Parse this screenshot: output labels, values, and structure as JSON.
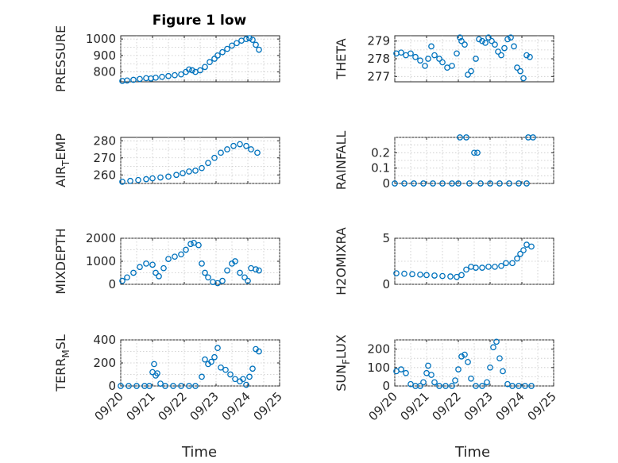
{
  "figure_title": "Figure 1 low",
  "marker_color": "#0072bd",
  "x_tick_labels": [
    "09/20",
    "09/21",
    "09/22",
    "09/23",
    "09/24",
    "09/25"
  ],
  "x_label": "Time",
  "chart_data": [
    {
      "type": "scatter",
      "title": "Figure 1 low",
      "ylabel": "PRESSURE",
      "xlim": [
        0,
        5
      ],
      "ylim": [
        740,
        1020
      ],
      "y_ticks": [
        800,
        900,
        1000
      ],
      "y_tick_labels": [
        "800",
        "900",
        "1000"
      ],
      "grid": true,
      "series": [
        {
          "points": [
            [
              0.05,
              745
            ],
            [
              0.2,
              748
            ],
            [
              0.4,
              752
            ],
            [
              0.6,
              757
            ],
            [
              0.8,
              762
            ],
            [
              0.95,
              760
            ],
            [
              1.1,
              765
            ],
            [
              1.3,
              770
            ],
            [
              1.5,
              775
            ],
            [
              1.7,
              780
            ],
            [
              1.9,
              785
            ],
            [
              2.05,
              800
            ],
            [
              2.15,
              815
            ],
            [
              2.25,
              810
            ],
            [
              2.35,
              800
            ],
            [
              2.5,
              810
            ],
            [
              2.65,
              830
            ],
            [
              2.8,
              860
            ],
            [
              2.95,
              880
            ],
            [
              3.05,
              900
            ],
            [
              3.2,
              920
            ],
            [
              3.35,
              940
            ],
            [
              3.5,
              960
            ],
            [
              3.65,
              975
            ],
            [
              3.8,
              990
            ],
            [
              3.95,
              1000
            ],
            [
              4.05,
              1005
            ],
            [
              4.15,
              995
            ],
            [
              4.25,
              965
            ],
            [
              4.35,
              935
            ]
          ]
        }
      ]
    },
    {
      "type": "scatter",
      "ylabel": "THETA",
      "xlim": [
        0,
        5
      ],
      "ylim": [
        276.7,
        279.3
      ],
      "y_ticks": [
        277,
        278,
        279
      ],
      "y_tick_labels": [
        "277",
        "278",
        "279"
      ],
      "grid": true,
      "series": [
        {
          "points": [
            [
              0.05,
              278.3
            ],
            [
              0.2,
              278.35
            ],
            [
              0.35,
              278.2
            ],
            [
              0.5,
              278.3
            ],
            [
              0.65,
              278.1
            ],
            [
              0.8,
              277.9
            ],
            [
              0.95,
              277.6
            ],
            [
              1.05,
              278.0
            ],
            [
              1.15,
              278.7
            ],
            [
              1.25,
              278.2
            ],
            [
              1.4,
              278.0
            ],
            [
              1.5,
              277.8
            ],
            [
              1.65,
              277.5
            ],
            [
              1.8,
              277.6
            ],
            [
              1.95,
              278.3
            ],
            [
              2.05,
              279.2
            ],
            [
              2.1,
              279.0
            ],
            [
              2.2,
              278.8
            ],
            [
              2.3,
              277.1
            ],
            [
              2.4,
              277.3
            ],
            [
              2.55,
              278.0
            ],
            [
              2.65,
              279.1
            ],
            [
              2.75,
              279.0
            ],
            [
              2.85,
              278.9
            ],
            [
              2.95,
              279.2
            ],
            [
              3.05,
              279.0
            ],
            [
              3.15,
              278.8
            ],
            [
              3.25,
              278.4
            ],
            [
              3.35,
              278.2
            ],
            [
              3.45,
              278.6
            ],
            [
              3.55,
              279.1
            ],
            [
              3.65,
              279.2
            ],
            [
              3.75,
              278.7
            ],
            [
              3.85,
              277.5
            ],
            [
              3.95,
              277.3
            ],
            [
              4.05,
              276.9
            ],
            [
              4.15,
              278.2
            ],
            [
              4.25,
              278.1
            ]
          ]
        }
      ]
    },
    {
      "type": "scatter",
      "ylabel": "AIR_TEMP",
      "xlim": [
        0,
        5
      ],
      "ylim": [
        255,
        282
      ],
      "y_ticks": [
        260,
        270,
        280
      ],
      "y_tick_labels": [
        "260",
        "270",
        "280"
      ],
      "grid": true,
      "series": [
        {
          "points": [
            [
              0.05,
              256
            ],
            [
              0.3,
              256.5
            ],
            [
              0.55,
              257
            ],
            [
              0.8,
              257.5
            ],
            [
              1.0,
              258
            ],
            [
              1.25,
              258.5
            ],
            [
              1.5,
              259
            ],
            [
              1.75,
              260
            ],
            [
              1.95,
              261
            ],
            [
              2.15,
              262
            ],
            [
              2.35,
              262.5
            ],
            [
              2.55,
              264
            ],
            [
              2.75,
              267
            ],
            [
              2.95,
              270
            ],
            [
              3.15,
              273
            ],
            [
              3.35,
              275
            ],
            [
              3.55,
              277
            ],
            [
              3.75,
              278
            ],
            [
              3.95,
              277
            ],
            [
              4.1,
              275
            ],
            [
              4.3,
              273
            ]
          ]
        }
      ]
    },
    {
      "type": "scatter",
      "ylabel": "RAINFALL",
      "xlim": [
        0,
        5
      ],
      "ylim": [
        0,
        0.3
      ],
      "y_ticks": [
        0,
        0.1,
        0.2
      ],
      "y_tick_labels": [
        "0",
        "0.1",
        "0.2"
      ],
      "grid": true,
      "series": [
        {
          "points": [
            [
              0.0,
              0
            ],
            [
              0.3,
              0
            ],
            [
              0.6,
              0
            ],
            [
              0.9,
              0
            ],
            [
              1.2,
              0
            ],
            [
              1.5,
              0
            ],
            [
              1.8,
              0
            ],
            [
              2.0,
              0
            ],
            [
              2.05,
              0.3
            ],
            [
              2.25,
              0.3
            ],
            [
              2.35,
              0
            ],
            [
              2.5,
              0.2
            ],
            [
              2.6,
              0.2
            ],
            [
              2.7,
              0
            ],
            [
              3.0,
              0
            ],
            [
              3.3,
              0
            ],
            [
              3.6,
              0
            ],
            [
              3.9,
              0
            ],
            [
              4.15,
              0
            ],
            [
              4.2,
              0.3
            ],
            [
              4.35,
              0.3
            ]
          ]
        }
      ]
    },
    {
      "type": "scatter",
      "ylabel": "MIXDEPTH",
      "xlim": [
        0,
        5
      ],
      "ylim": [
        0,
        2000
      ],
      "y_ticks": [
        0,
        1000,
        2000
      ],
      "y_tick_labels": [
        "0",
        "1000",
        "2000"
      ],
      "grid": true,
      "series": [
        {
          "points": [
            [
              0.05,
              150
            ],
            [
              0.2,
              300
            ],
            [
              0.4,
              500
            ],
            [
              0.6,
              750
            ],
            [
              0.8,
              900
            ],
            [
              1.0,
              850
            ],
            [
              1.1,
              500
            ],
            [
              1.2,
              350
            ],
            [
              1.35,
              700
            ],
            [
              1.5,
              1100
            ],
            [
              1.7,
              1200
            ],
            [
              1.9,
              1300
            ],
            [
              2.05,
              1500
            ],
            [
              2.2,
              1750
            ],
            [
              2.3,
              1800
            ],
            [
              2.45,
              1700
            ],
            [
              2.55,
              900
            ],
            [
              2.65,
              500
            ],
            [
              2.75,
              300
            ],
            [
              2.9,
              100
            ],
            [
              3.05,
              50
            ],
            [
              3.2,
              150
            ],
            [
              3.35,
              600
            ],
            [
              3.5,
              900
            ],
            [
              3.6,
              1000
            ],
            [
              3.75,
              500
            ],
            [
              3.9,
              300
            ],
            [
              4.0,
              150
            ],
            [
              4.1,
              700
            ],
            [
              4.25,
              650
            ],
            [
              4.35,
              600
            ]
          ]
        }
      ]
    },
    {
      "type": "scatter",
      "ylabel": "H2OMIXRA",
      "xlim": [
        0,
        5
      ],
      "ylim": [
        0,
        5
      ],
      "y_ticks": [
        0,
        5
      ],
      "y_tick_labels": [
        "0",
        "5"
      ],
      "grid": true,
      "series": [
        {
          "points": [
            [
              0.05,
              1.2
            ],
            [
              0.3,
              1.15
            ],
            [
              0.55,
              1.1
            ],
            [
              0.8,
              1.05
            ],
            [
              1.0,
              1.0
            ],
            [
              1.25,
              0.95
            ],
            [
              1.5,
              0.9
            ],
            [
              1.75,
              0.85
            ],
            [
              1.95,
              0.8
            ],
            [
              2.1,
              1.0
            ],
            [
              2.25,
              1.6
            ],
            [
              2.4,
              1.9
            ],
            [
              2.55,
              1.8
            ],
            [
              2.75,
              1.8
            ],
            [
              2.95,
              1.9
            ],
            [
              3.15,
              1.9
            ],
            [
              3.35,
              2.0
            ],
            [
              3.5,
              2.3
            ],
            [
              3.7,
              2.3
            ],
            [
              3.85,
              2.8
            ],
            [
              3.95,
              3.3
            ],
            [
              4.05,
              3.7
            ],
            [
              4.15,
              4.3
            ],
            [
              4.3,
              4.1
            ]
          ]
        }
      ]
    },
    {
      "type": "scatter",
      "ylabel": "TERR_MSL",
      "xlim": [
        0,
        5
      ],
      "ylim": [
        0,
        400
      ],
      "y_ticks": [
        0,
        200,
        400
      ],
      "y_tick_labels": [
        "0",
        "200",
        "400"
      ],
      "grid": true,
      "series": [
        {
          "points": [
            [
              0.0,
              0
            ],
            [
              0.25,
              0
            ],
            [
              0.5,
              0
            ],
            [
              0.75,
              0
            ],
            [
              0.9,
              0
            ],
            [
              1.0,
              120
            ],
            [
              1.05,
              190
            ],
            [
              1.1,
              90
            ],
            [
              1.15,
              110
            ],
            [
              1.25,
              20
            ],
            [
              1.4,
              0
            ],
            [
              1.65,
              0
            ],
            [
              1.9,
              0
            ],
            [
              2.15,
              0
            ],
            [
              2.35,
              0
            ],
            [
              2.55,
              80
            ],
            [
              2.65,
              230
            ],
            [
              2.75,
              190
            ],
            [
              2.85,
              210
            ],
            [
              2.95,
              250
            ],
            [
              3.05,
              330
            ],
            [
              3.15,
              160
            ],
            [
              3.3,
              140
            ],
            [
              3.45,
              100
            ],
            [
              3.6,
              60
            ],
            [
              3.75,
              40
            ],
            [
              3.85,
              60
            ],
            [
              3.95,
              10
            ],
            [
              4.05,
              80
            ],
            [
              4.15,
              150
            ],
            [
              4.25,
              320
            ],
            [
              4.35,
              300
            ]
          ]
        }
      ]
    },
    {
      "type": "scatter",
      "ylabel": "SUN_FLUX",
      "xlim": [
        0,
        5
      ],
      "ylim": [
        0,
        250
      ],
      "y_ticks": [
        0,
        100,
        200
      ],
      "y_tick_labels": [
        "0",
        "100",
        "200"
      ],
      "grid": true,
      "series": [
        {
          "points": [
            [
              0.05,
              80
            ],
            [
              0.2,
              90
            ],
            [
              0.35,
              70
            ],
            [
              0.5,
              10
            ],
            [
              0.65,
              0
            ],
            [
              0.8,
              0
            ],
            [
              0.9,
              20
            ],
            [
              1.0,
              70
            ],
            [
              1.05,
              110
            ],
            [
              1.15,
              60
            ],
            [
              1.25,
              20
            ],
            [
              1.4,
              0
            ],
            [
              1.6,
              0
            ],
            [
              1.8,
              0
            ],
            [
              1.9,
              30
            ],
            [
              2.0,
              90
            ],
            [
              2.1,
              160
            ],
            [
              2.2,
              170
            ],
            [
              2.3,
              130
            ],
            [
              2.4,
              40
            ],
            [
              2.55,
              0
            ],
            [
              2.75,
              0
            ],
            [
              2.9,
              20
            ],
            [
              3.0,
              100
            ],
            [
              3.1,
              210
            ],
            [
              3.2,
              240
            ],
            [
              3.3,
              150
            ],
            [
              3.4,
              80
            ],
            [
              3.55,
              10
            ],
            [
              3.7,
              0
            ],
            [
              3.9,
              0
            ],
            [
              4.1,
              0
            ],
            [
              4.3,
              0
            ]
          ]
        }
      ]
    }
  ]
}
